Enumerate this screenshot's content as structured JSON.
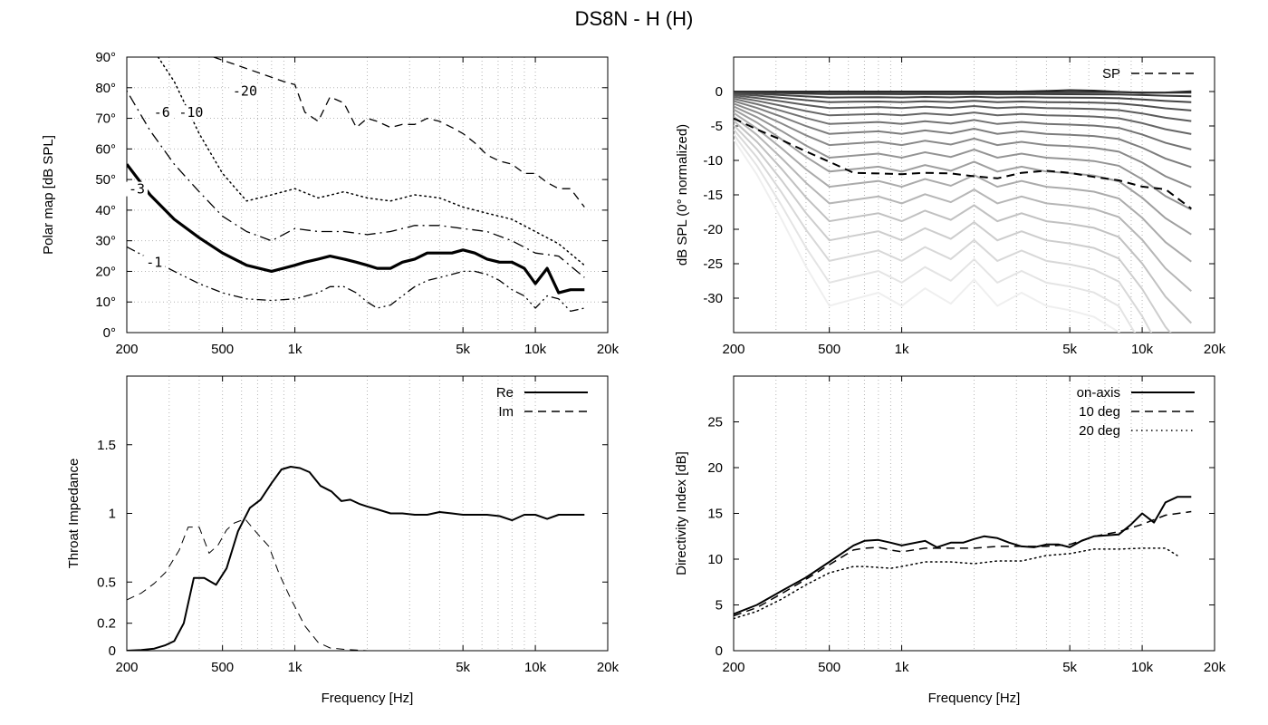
{
  "title": "DS8N - H (H)",
  "colors": {
    "grid": "#b4b4b4",
    "frame": "#000000",
    "line": "#000000"
  },
  "chart_data": [
    {
      "id": "polar",
      "type": "line",
      "xscale": "log",
      "xlim": [
        200,
        20000
      ],
      "ylim": [
        0,
        90
      ],
      "xlabel": "",
      "ylabel": "Polar map [dB SPL]",
      "xticks": [
        200,
        500,
        1000,
        5000,
        10000,
        20000
      ],
      "xtick_labels": [
        "200",
        "500",
        "1k",
        "5k",
        "10k",
        "20k"
      ],
      "yticks": [
        0,
        10,
        20,
        30,
        40,
        50,
        60,
        70,
        80,
        90
      ],
      "ytick_labels": [
        "0°",
        "10°",
        "20°",
        "30°",
        "40°",
        "50°",
        "60°",
        "70°",
        "80°",
        "90°"
      ],
      "series": [
        {
          "name": "-1",
          "label": "-1",
          "style": "dashdotdot",
          "width": 1.3,
          "x": [
            200,
            250,
            315,
            400,
            500,
            630,
            800,
            1000,
            1250,
            1400,
            1600,
            1800,
            2000,
            2200,
            2500,
            2800,
            3150,
            3550,
            4000,
            4500,
            5000,
            5600,
            6300,
            7100,
            8000,
            9000,
            10000,
            11200,
            12500,
            14000,
            16000
          ],
          "y": [
            28,
            24,
            20,
            16,
            13,
            11,
            10.5,
            11,
            13,
            15,
            15,
            13,
            10,
            8,
            9,
            12,
            15,
            17,
            18,
            19,
            20,
            20,
            19,
            17,
            14,
            12,
            8,
            12,
            11,
            7,
            8
          ]
        },
        {
          "name": "-3",
          "label": "-3",
          "style": "solid",
          "width": 3.2,
          "x": [
            200,
            250,
            315,
            400,
            500,
            630,
            800,
            1000,
            1100,
            1250,
            1400,
            1600,
            1800,
            2000,
            2200,
            2500,
            2800,
            3150,
            3550,
            4000,
            4500,
            5000,
            5600,
            6300,
            7100,
            8000,
            9000,
            10000,
            11200,
            12500,
            14000,
            16000
          ],
          "y": [
            55,
            45,
            37,
            31,
            26,
            22,
            20,
            22,
            23,
            24,
            25,
            24,
            23,
            22,
            21,
            21,
            23,
            24,
            26,
            26,
            26,
            27,
            26,
            24,
            23,
            23,
            21,
            16,
            21,
            13,
            14,
            14
          ]
        },
        {
          "name": "-6",
          "label": "-6",
          "style": "dashdot",
          "width": 1.3,
          "x": [
            170,
            200,
            250,
            315,
            400,
            500,
            630,
            800,
            1000,
            1250,
            1600,
            2000,
            2500,
            3150,
            4000,
            5000,
            6300,
            8000,
            10000,
            12500,
            16000
          ],
          "y": [
            90,
            79,
            66,
            55,
            46,
            38,
            33,
            30,
            34,
            33,
            33,
            32,
            33,
            35,
            35,
            34,
            33,
            30,
            26,
            25,
            18
          ]
        },
        {
          "name": "-10",
          "label": "-10",
          "style": "dotted",
          "width": 1.5,
          "x": [
            270,
            315,
            400,
            500,
            630,
            800,
            1000,
            1250,
            1600,
            2000,
            2500,
            3150,
            4000,
            5000,
            6300,
            8000,
            10000,
            12500,
            16000
          ],
          "y": [
            90,
            82,
            65,
            52,
            43,
            45,
            47,
            44,
            46,
            44,
            43,
            45,
            44,
            41,
            39,
            37,
            33,
            29,
            22
          ]
        },
        {
          "name": "-20",
          "label": "-20",
          "style": "dashed",
          "width": 1.3,
          "x": [
            460,
            900,
            1000,
            1100,
            1250,
            1400,
            1600,
            1800,
            2000,
            2200,
            2500,
            2800,
            3150,
            3550,
            4000,
            4500,
            5000,
            5600,
            6300,
            7100,
            8000,
            9000,
            10000,
            11200,
            12500,
            14000,
            16000
          ],
          "y": [
            90,
            82,
            81,
            72,
            69,
            77,
            75,
            67,
            70,
            69,
            67,
            68,
            68,
            70,
            69,
            67,
            65,
            62,
            58,
            56,
            55,
            52,
            52,
            49,
            47,
            47,
            41
          ]
        }
      ],
      "labels": [
        {
          "text": "-1",
          "x": 260,
          "y": 22
        },
        {
          "text": "-3",
          "x": 220,
          "y": 46
        },
        {
          "text": "-6",
          "x": 280,
          "y": 71
        },
        {
          "text": "-10",
          "x": 370,
          "y": 71
        },
        {
          "text": "-20",
          "x": 620,
          "y": 78
        }
      ]
    },
    {
      "id": "normalized",
      "type": "line",
      "xscale": "log",
      "xlim": [
        200,
        20000
      ],
      "ylim": [
        -35,
        5
      ],
      "xlabel": "",
      "ylabel": "dB SPL (0° normalized)",
      "xticks": [
        200,
        500,
        1000,
        5000,
        10000,
        20000
      ],
      "xtick_labels": [
        "200",
        "500",
        "1k",
        "5k",
        "10k",
        "20k"
      ],
      "yticks": [
        0,
        -5,
        -10,
        -15,
        -20,
        -25,
        -30
      ],
      "ytick_labels": [
        "0",
        "-5",
        "-10",
        "-15",
        "-20",
        "-25",
        "-30"
      ],
      "legend": {
        "position": "top-right",
        "entries": [
          {
            "label": "SP",
            "style": "dashed"
          }
        ]
      },
      "freqs": [
        200,
        250,
        315,
        400,
        500,
        630,
        800,
        1000,
        1250,
        1600,
        2000,
        2500,
        3150,
        4000,
        5000,
        6300,
        8000,
        10000,
        12500,
        16000
      ],
      "base_curve": [
        0.22,
        0.38,
        0.58,
        0.8,
        0.98,
        0.95,
        0.92,
        0.98,
        0.9,
        0.97,
        0.86,
        0.98,
        0.92,
        0.98,
        1.0,
        1.03,
        1.1,
        1.3,
        1.55,
        1.75
      ],
      "angle_steps": 18,
      "series": [
        {
          "name": "SP",
          "style": "dashed",
          "width": 2,
          "x": [
            200,
            250,
            315,
            400,
            500,
            630,
            800,
            1000,
            1250,
            1600,
            2000,
            2500,
            3150,
            4000,
            5000,
            6300,
            8000,
            10000,
            12500,
            16000
          ],
          "y": [
            -3.9,
            -5.5,
            -7,
            -8.7,
            -10.2,
            -11.8,
            -11.9,
            -12,
            -11.8,
            -11.9,
            -12.3,
            -12.6,
            -11.8,
            -11.5,
            -11.8,
            -12.4,
            -12.9,
            -13.8,
            -14.2,
            -17
          ]
        }
      ]
    },
    {
      "id": "impedance",
      "type": "line",
      "xscale": "log",
      "xlim": [
        200,
        20000
      ],
      "ylim": [
        0,
        2
      ],
      "xlabel": "Frequency [Hz]",
      "ylabel": "Throat Impedance",
      "xticks": [
        200,
        500,
        1000,
        5000,
        10000,
        20000
      ],
      "xtick_labels": [
        "200",
        "500",
        "1k",
        "5k",
        "10k",
        "20k"
      ],
      "yticks": [
        0,
        0.2,
        0.5,
        1,
        1.5
      ],
      "ytick_labels": [
        "0",
        "0.2",
        "0.5",
        "1",
        "1.5"
      ],
      "legend": {
        "position": "top-right",
        "entries": [
          {
            "label": "Re",
            "style": "solid"
          },
          {
            "label": "Im",
            "style": "dashed"
          }
        ]
      },
      "series": [
        {
          "name": "Re",
          "style": "solid",
          "width": 2,
          "x": [
            200,
            230,
            260,
            290,
            315,
            345,
            380,
            420,
            470,
            520,
            580,
            650,
            720,
            800,
            880,
            960,
            1050,
            1150,
            1280,
            1420,
            1560,
            1700,
            1850,
            2000,
            2200,
            2500,
            2800,
            3150,
            3550,
            4000,
            4500,
            5000,
            5600,
            6300,
            7100,
            8000,
            9000,
            10000,
            11200,
            12500,
            14000,
            16000
          ],
          "y": [
            0,
            0.005,
            0.015,
            0.04,
            0.07,
            0.2,
            0.53,
            0.53,
            0.48,
            0.6,
            0.87,
            1.04,
            1.1,
            1.22,
            1.32,
            1.34,
            1.33,
            1.3,
            1.2,
            1.16,
            1.09,
            1.1,
            1.07,
            1.05,
            1.03,
            1.0,
            1.0,
            0.99,
            0.99,
            1.01,
            1.0,
            0.99,
            0.99,
            0.99,
            0.98,
            0.95,
            0.99,
            0.99,
            0.96,
            0.99,
            0.99,
            0.99
          ]
        },
        {
          "name": "Im",
          "style": "dashed",
          "width": 1,
          "x": [
            200,
            230,
            260,
            290,
            330,
            360,
            400,
            440,
            480,
            520,
            560,
            620,
            700,
            780,
            860,
            960,
            1100,
            1250,
            1400,
            1600,
            1800,
            2000,
            2200,
            2500
          ],
          "y": [
            0.37,
            0.42,
            0.49,
            0.57,
            0.73,
            0.9,
            0.9,
            0.71,
            0.77,
            0.88,
            0.93,
            0.96,
            0.85,
            0.76,
            0.56,
            0.38,
            0.18,
            0.06,
            0.02,
            0.01,
            0.005,
            0,
            0,
            0
          ]
        }
      ]
    },
    {
      "id": "directivity",
      "type": "line",
      "xscale": "log",
      "xlim": [
        200,
        20000
      ],
      "ylim": [
        0,
        30
      ],
      "xlabel": "Frequency [Hz]",
      "ylabel": "Directivity Index [dB]",
      "xticks": [
        200,
        500,
        1000,
        5000,
        10000,
        20000
      ],
      "xtick_labels": [
        "200",
        "500",
        "1k",
        "5k",
        "10k",
        "20k"
      ],
      "yticks": [
        0,
        5,
        10,
        15,
        20,
        25
      ],
      "ytick_labels": [
        "0",
        "5",
        "10",
        "15",
        "20",
        "25"
      ],
      "legend": {
        "position": "top-right",
        "entries": [
          {
            "label": "on-axis",
            "style": "solid"
          },
          {
            "label": "10 deg",
            "style": "dashed"
          },
          {
            "label": "20 deg",
            "style": "dotted"
          }
        ]
      },
      "series": [
        {
          "name": "on-axis",
          "style": "solid",
          "width": 2,
          "x": [
            200,
            250,
            315,
            400,
            500,
            630,
            700,
            800,
            900,
            1000,
            1250,
            1400,
            1600,
            1800,
            2000,
            2200,
            2500,
            2800,
            3150,
            3550,
            4000,
            4500,
            5000,
            5600,
            6300,
            7100,
            8000,
            9000,
            10000,
            11200,
            12500,
            14000,
            16000
          ],
          "y": [
            4,
            5,
            6.5,
            8,
            9.7,
            11.5,
            12,
            12.1,
            11.8,
            11.5,
            12,
            11.3,
            11.8,
            11.8,
            12.2,
            12.5,
            12.3,
            11.8,
            11.4,
            11.3,
            11.6,
            11.6,
            11.3,
            12,
            12.5,
            12.6,
            12.7,
            13.8,
            15,
            14,
            16.2,
            16.8,
            16.8
          ]
        },
        {
          "name": "10 deg",
          "style": "dashed",
          "width": 1.5,
          "x": [
            200,
            250,
            315,
            400,
            500,
            630,
            700,
            800,
            900,
            1000,
            1250,
            1600,
            2000,
            2500,
            3150,
            4000,
            5000,
            6300,
            8000,
            10000,
            12500,
            16000
          ],
          "y": [
            3.8,
            4.7,
            6.2,
            7.8,
            9.4,
            11,
            11.2,
            11.3,
            11,
            10.8,
            11.2,
            11.2,
            11.2,
            11.4,
            11.4,
            11.4,
            11.6,
            12.5,
            13,
            13.8,
            14.8,
            15.2
          ]
        },
        {
          "name": "20 deg",
          "style": "dotted",
          "width": 1.5,
          "x": [
            200,
            250,
            315,
            400,
            500,
            630,
            700,
            800,
            900,
            1000,
            1250,
            1600,
            2000,
            2500,
            3150,
            4000,
            5000,
            6300,
            8000,
            10000,
            12500,
            14000
          ],
          "y": [
            3.5,
            4.3,
            5.6,
            7.2,
            8.5,
            9.2,
            9.2,
            9.1,
            9,
            9.2,
            9.7,
            9.7,
            9.5,
            9.8,
            9.8,
            10.4,
            10.6,
            11.1,
            11.1,
            11.2,
            11.2,
            10.4
          ]
        }
      ]
    }
  ]
}
